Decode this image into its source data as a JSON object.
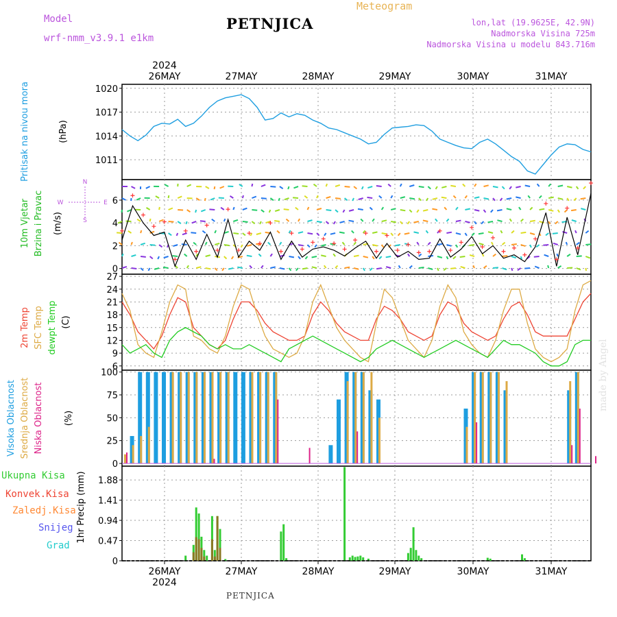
{
  "header": {
    "model_label": "Model",
    "model_name": "wrf-nmm_v3.9.1 e1km",
    "station": "PETNJICA",
    "meteogram_label": "Meteogram",
    "lonlat": "lon,lat (19.9625E, 42.9N)",
    "elevation": "Nadmorska Visina 725m",
    "model_elevation": "Nadmorska Visina u modelu 843.716m",
    "footer_station": "PETNJICA",
    "credit": "made by Angel"
  },
  "colors": {
    "pressure": "#1e9ee0",
    "temp2m": "#ee4433",
    "sfctemp": "#ddaa44",
    "dewpt": "#22cc22",
    "high_cloud": "#1e9ee0",
    "mid_cloud": "#ddaa44",
    "low_cloud": "#dd2288",
    "total_precip": "#33cc33",
    "conv_precip": "#ee4433",
    "frozen_precip": "#ff8833",
    "snow": "#5555ee",
    "graupel": "#22cccc",
    "wind_label": "#22bb22",
    "wind_dir": "#bb55dd",
    "speed_line": "#000000",
    "gust_marker": "#ff3333"
  },
  "chart_data": [
    {
      "type": "line",
      "name": "pressure",
      "ylabel": "Pritisak na nivou mora",
      "unit": "(hPa)",
      "x_ticks": [
        "26MAY",
        "27MAY",
        "28MAY",
        "29MAY",
        "30MAY",
        "31MAY"
      ],
      "top_year": "2024",
      "bottom_year": "2024",
      "yticks": [
        1011,
        1014,
        1017,
        1020
      ],
      "ylim": [
        1008.5,
        1020.5
      ],
      "x_hours": [
        0,
        3,
        6,
        9,
        12,
        15,
        18,
        21,
        24,
        27,
        30,
        33,
        36,
        39,
        42,
        45,
        48,
        51,
        54,
        57,
        60,
        63,
        66,
        69,
        72,
        75,
        78,
        81,
        84,
        87,
        90,
        93,
        96,
        99,
        102,
        105,
        108,
        111,
        114,
        117,
        120,
        123,
        126,
        129,
        132,
        135,
        138,
        141,
        144,
        147,
        150,
        153,
        156,
        159,
        162,
        165,
        168,
        171,
        174,
        177
      ],
      "values": [
        1014.8,
        1014.0,
        1013.4,
        1014.1,
        1015.2,
        1015.6,
        1015.5,
        1016.1,
        1015.2,
        1015.6,
        1016.5,
        1017.6,
        1018.4,
        1018.8,
        1019.0,
        1019.2,
        1018.7,
        1017.6,
        1016.0,
        1016.2,
        1016.9,
        1016.4,
        1016.8,
        1016.6,
        1016.0,
        1015.6,
        1015.0,
        1014.8,
        1014.4,
        1014.0,
        1013.6,
        1013.0,
        1013.2,
        1014.2,
        1015.0,
        1015.1,
        1015.2,
        1015.4,
        1015.3,
        1014.6,
        1013.6,
        1013.2,
        1012.8,
        1012.5,
        1012.4,
        1013.2,
        1013.6,
        1013.0,
        1012.2,
        1011.4,
        1010.8,
        1009.6,
        1009.2,
        1010.4,
        1011.6,
        1012.6,
        1013.0,
        1012.9,
        1012.3,
        1012.0
      ]
    },
    {
      "type": "line",
      "name": "wind",
      "ylabel": "10m Vjetar",
      "ylabel2": "Brzina i Pravac",
      "unit": "(m/s)",
      "dir_legend": [
        "N",
        "W",
        "E",
        "S"
      ],
      "yticks": [
        0,
        2,
        4,
        6
      ],
      "ylim": [
        -0.5,
        7.8
      ],
      "x_hours": [
        0,
        4,
        8,
        12,
        16,
        20,
        24,
        28,
        32,
        36,
        40,
        44,
        48,
        52,
        56,
        60,
        64,
        68,
        72,
        76,
        80,
        84,
        88,
        92,
        96,
        100,
        104,
        108,
        112,
        116,
        120,
        124,
        128,
        132,
        136,
        140,
        144,
        148,
        152,
        156,
        160,
        164,
        168,
        172,
        177
      ],
      "speed": [
        2.5,
        5.5,
        4.0,
        2.9,
        3.2,
        0.2,
        2.5,
        0.8,
        3.0,
        1.0,
        4.3,
        1.0,
        2.4,
        1.6,
        3.2,
        0.8,
        2.4,
        1.0,
        1.7,
        1.9,
        1.6,
        1.1,
        1.8,
        2.4,
        0.9,
        2.2,
        1.0,
        1.5,
        0.8,
        0.9,
        2.6,
        1.0,
        1.7,
        2.8,
        1.3,
        2.0,
        0.9,
        1.2,
        0.6,
        1.9,
        4.9,
        0.2,
        4.5,
        1.2,
        6.6
      ],
      "gust": [
        3.3,
        6.4,
        4.7,
        3.7,
        4.1,
        0.8,
        3.3,
        1.5,
        3.8,
        1.6,
        5.2,
        1.6,
        3.1,
        2.2,
        4.0,
        1.5,
        3.1,
        1.7,
        2.3,
        2.6,
        2.2,
        1.7,
        2.5,
        3.1,
        1.5,
        2.9,
        1.6,
        2.1,
        1.4,
        1.5,
        3.3,
        1.6,
        2.3,
        3.6,
        1.9,
        2.7,
        1.5,
        1.8,
        1.2,
        2.6,
        5.7,
        0.8,
        5.3,
        1.8,
        7.5
      ]
    },
    {
      "type": "line",
      "name": "temperature",
      "ylabel": "2m Temp",
      "ylabel2": "SFC Temp",
      "ylabel3": "dewpt Temp",
      "unit": "(C)",
      "yticks": [
        6,
        9,
        12,
        15,
        18,
        21,
        24,
        27
      ],
      "ylim": [
        5,
        27.5
      ],
      "x_hours": [
        0,
        3,
        6,
        9,
        12,
        15,
        18,
        21,
        24,
        27,
        30,
        33,
        36,
        39,
        42,
        45,
        48,
        51,
        54,
        57,
        60,
        63,
        66,
        69,
        72,
        75,
        78,
        81,
        84,
        87,
        90,
        93,
        96,
        99,
        102,
        105,
        108,
        111,
        114,
        117,
        120,
        123,
        126,
        129,
        132,
        135,
        138,
        141,
        144,
        147,
        150,
        153,
        156,
        159,
        162,
        165,
        168,
        171,
        174,
        177
      ],
      "series": [
        {
          "name": "2m Temp",
          "values": [
            21,
            18,
            14,
            12,
            10,
            13,
            18,
            22,
            21,
            15,
            13,
            11,
            10,
            12,
            17,
            21,
            21,
            19,
            16,
            14,
            13,
            12,
            12,
            13,
            18,
            21,
            19,
            16,
            14,
            13,
            12,
            12,
            17,
            20,
            19,
            17,
            14,
            13,
            12,
            13,
            18,
            21,
            20,
            16,
            14,
            13,
            12,
            13,
            17,
            20,
            21,
            18,
            14,
            13,
            13,
            13,
            13,
            17,
            21,
            23
          ]
        },
        {
          "name": "SFC Temp",
          "values": [
            23,
            19,
            11,
            9,
            8,
            14,
            21,
            25,
            24,
            13,
            12,
            10,
            9,
            13,
            20,
            25,
            24,
            18,
            13,
            10,
            9,
            8,
            9,
            13,
            21,
            25,
            20,
            15,
            12,
            10,
            8,
            7,
            16,
            24,
            22,
            17,
            12,
            10,
            8,
            12,
            20,
            25,
            22,
            14,
            11,
            9,
            8,
            12,
            19,
            24,
            24,
            16,
            10,
            8,
            7,
            8,
            10,
            19,
            25,
            26
          ]
        },
        {
          "name": "dewpt Temp",
          "values": [
            11,
            9,
            10,
            11,
            9,
            8,
            12,
            14,
            15,
            14,
            13,
            11,
            10,
            11,
            10,
            10,
            11,
            10,
            9,
            8,
            7,
            10,
            11,
            12,
            13,
            12,
            11,
            10,
            9,
            8,
            7,
            8,
            10,
            11,
            12,
            11,
            10,
            9,
            8,
            9,
            10,
            11,
            12,
            11,
            10,
            9,
            8,
            10,
            12,
            11,
            11,
            10,
            9,
            7,
            6,
            6,
            7,
            11,
            12,
            12
          ]
        }
      ]
    },
    {
      "type": "bar",
      "name": "clouds",
      "ylabel": "Visoka Oblacnost",
      "ylabel2": "Srednja Oblacnost",
      "ylabel3": "Niska Oblacnost",
      "unit": "(%)",
      "yticks": [
        0,
        25,
        50,
        75,
        100
      ],
      "ylim": [
        -3,
        102
      ],
      "x_hours": [
        0,
        3,
        6,
        9,
        12,
        15,
        18,
        21,
        24,
        27,
        30,
        33,
        36,
        39,
        42,
        45,
        48,
        51,
        54,
        57,
        60,
        63,
        66,
        69,
        72,
        75,
        78,
        81,
        84,
        87,
        90,
        93,
        96,
        99,
        102,
        105,
        108,
        111,
        114,
        117,
        120,
        123,
        126,
        129,
        132,
        135,
        138,
        141,
        144,
        147,
        150,
        153,
        156,
        159,
        162,
        165,
        168,
        171,
        174,
        177
      ],
      "series": [
        {
          "name": "Visoka Oblacnost",
          "values": [
            0,
            30,
            100,
            100,
            100,
            100,
            100,
            100,
            100,
            100,
            100,
            100,
            100,
            100,
            100,
            100,
            100,
            100,
            100,
            100,
            0,
            0,
            0,
            0,
            0,
            0,
            20,
            70,
            100,
            100,
            100,
            80,
            70,
            0,
            0,
            0,
            0,
            0,
            0,
            0,
            0,
            0,
            0,
            60,
            100,
            100,
            100,
            100,
            80,
            0,
            0,
            0,
            0,
            0,
            0,
            0,
            80,
            100,
            0,
            0
          ]
        },
        {
          "name": "Srednja Oblacnost",
          "values": [
            10,
            20,
            30,
            40,
            0,
            0,
            100,
            100,
            100,
            100,
            100,
            100,
            100,
            100,
            0,
            0,
            100,
            100,
            100,
            100,
            0,
            0,
            0,
            0,
            0,
            0,
            0,
            0,
            90,
            100,
            100,
            100,
            50,
            0,
            0,
            0,
            0,
            0,
            0,
            0,
            0,
            0,
            0,
            40,
            100,
            100,
            100,
            100,
            90,
            0,
            0,
            0,
            0,
            0,
            0,
            0,
            90,
            100,
            0,
            0
          ]
        },
        {
          "name": "Niska Oblacnost",
          "values": [
            12,
            0,
            0,
            0,
            0,
            0,
            0,
            0,
            0,
            0,
            0,
            5,
            0,
            0,
            0,
            0,
            0,
            0,
            0,
            70,
            0,
            0,
            0,
            17,
            0,
            0,
            0,
            0,
            0,
            35,
            0,
            0,
            0,
            0,
            0,
            0,
            0,
            0,
            0,
            0,
            0,
            0,
            0,
            0,
            45,
            0,
            0,
            0,
            0,
            0,
            0,
            0,
            0,
            0,
            0,
            0,
            20,
            60,
            0,
            8
          ]
        }
      ]
    },
    {
      "type": "bar",
      "name": "precipitation",
      "ylabel": "1hr Precip",
      "unit": "(mm)",
      "legend": [
        "Ukupna Kisa",
        "Konvek.Kisa",
        "Zaledj.Kisa",
        "Snijeg",
        "Grad"
      ],
      "yticks": [
        0,
        0.47,
        0.94,
        1.41,
        1.88
      ],
      "ylim": [
        0,
        2.2
      ],
      "x_hours": [
        24,
        27,
        28,
        29,
        30,
        31,
        32,
        34,
        35,
        36,
        37,
        39,
        60,
        61,
        62,
        84,
        86,
        87,
        88,
        89,
        90,
        91,
        93,
        108,
        109,
        110,
        111,
        112,
        113,
        138,
        139,
        151,
        152
      ],
      "series": [
        {
          "name": "Ukupna Kisa",
          "values": [
            0.12,
            0.37,
            1.24,
            1.1,
            0.56,
            0.25,
            0.12,
            1.04,
            0.25,
            1.04,
            0.74,
            0.04,
            0.68,
            0.85,
            0.06,
            2.18,
            0.08,
            0.12,
            0.09,
            0.1,
            0.12,
            0.08,
            0.05,
            0.18,
            0.3,
            0.78,
            0.25,
            0.12,
            0.06,
            0.07,
            0.05,
            0.15,
            0.06
          ]
        },
        {
          "name": "Konvek.Kisa",
          "values": [
            0.0,
            0.2,
            0.55,
            0.5,
            0.3,
            0.1,
            0.0,
            0.5,
            0.1,
            1.04,
            0.3,
            0.0,
            0.0,
            0.0,
            0.0,
            0.0,
            0.0,
            0.0,
            0.0,
            0.0,
            0.0,
            0.0,
            0.0,
            0.0,
            0.0,
            0.0,
            0.0,
            0.0,
            0.0,
            0.0,
            0.0,
            0.0,
            0.0
          ]
        }
      ]
    }
  ]
}
